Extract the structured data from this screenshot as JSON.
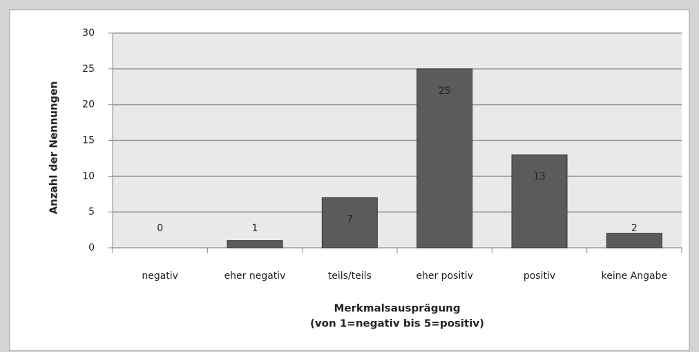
{
  "chart_data": {
    "type": "bar",
    "ylabel": "Anzahl der Nennungen",
    "xlabel": [
      "Merkmalsausprägung",
      "(von 1=negativ bis 5=positiv)"
    ],
    "categories": [
      "negativ",
      "eher negativ",
      "teils/teils",
      "eher positiv",
      "positiv",
      "keine Angabe"
    ],
    "values": [
      0,
      1,
      7,
      25,
      13,
      2
    ],
    "color": "#5b5b5b",
    "ylim": [
      0,
      30
    ],
    "yticks": [
      0,
      5,
      10,
      15,
      20,
      25,
      30
    ],
    "grid": true
  }
}
